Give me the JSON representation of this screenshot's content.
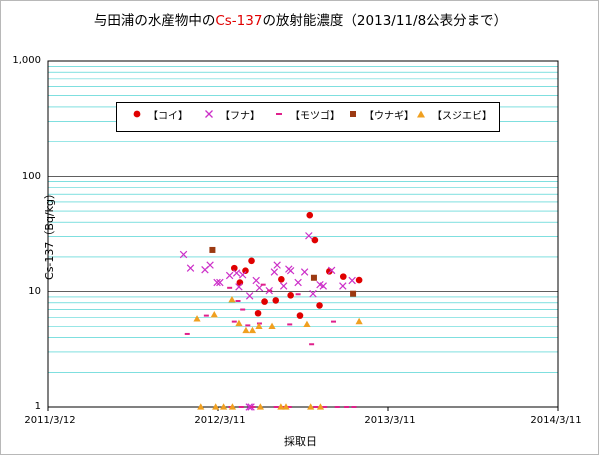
{
  "chart_data": {
    "type": "scatter",
    "title_prefix": "与田浦の水産物中の",
    "title_highlight": "Cs-137",
    "title_suffix": "の放射能濃度（2013/11/8公表分まで）",
    "xlabel": "採取日",
    "ylabel": "Cs-137（Bq/kg）",
    "y_scale": "log",
    "ylim": [
      1,
      1000
    ],
    "xlim": [
      "2011-03-12",
      "2014-03-11"
    ],
    "y_ticks": [
      "1",
      "10",
      "100",
      "1,000"
    ],
    "x_ticks": [
      "2011/3/12",
      "2012/3/11",
      "2013/3/11",
      "2014/3/11"
    ],
    "grid": true,
    "legend_position": "upper-center",
    "colors": {
      "koi": "#e00000",
      "funa": "#cc2fc8",
      "motsugo": "#e0208c",
      "unagi": "#9c3a12",
      "sujiebi": "#f0a020",
      "grid": "#33cccc",
      "axis": "#000000"
    },
    "series": [
      {
        "key": "koi",
        "name": "【コイ】",
        "marker": "circle",
        "points": [
          [
            "2012-04-15",
            16
          ],
          [
            "2012-04-27",
            12
          ],
          [
            "2012-05-09",
            15.2
          ],
          [
            "2012-05-22",
            18.5
          ],
          [
            "2012-06-05",
            6.5
          ],
          [
            "2012-06-19",
            8.2
          ],
          [
            "2012-07-13",
            8.4
          ],
          [
            "2012-07-25",
            12.8
          ],
          [
            "2012-08-14",
            9.3
          ],
          [
            "2012-09-03",
            6.2
          ],
          [
            "2012-09-24",
            46
          ],
          [
            "2012-10-05",
            28
          ],
          [
            "2012-10-15",
            7.6
          ],
          [
            "2012-11-05",
            15
          ],
          [
            "2012-12-05",
            13.5
          ],
          [
            "2013-01-08",
            12.6
          ]
        ]
      },
      {
        "key": "funa",
        "name": "【フナ】",
        "marker": "x",
        "points": [
          [
            "2011-12-28",
            21
          ],
          [
            "2012-01-12",
            16
          ],
          [
            "2012-02-12",
            15.5
          ],
          [
            "2012-02-23",
            17
          ],
          [
            "2012-03-09",
            12
          ],
          [
            "2012-03-15",
            12
          ],
          [
            "2012-04-05",
            13.8
          ],
          [
            "2012-04-20",
            14.5
          ],
          [
            "2012-04-25",
            11
          ],
          [
            "2012-05-03",
            14
          ],
          [
            "2012-05-18",
            9.2
          ],
          [
            "2012-06-01",
            12.5
          ],
          [
            "2012-06-08",
            10.8
          ],
          [
            "2012-06-29",
            10.2
          ],
          [
            "2012-07-10",
            14.8
          ],
          [
            "2012-07-16",
            17
          ],
          [
            "2012-07-30",
            11.2
          ],
          [
            "2012-08-10",
            15.7
          ],
          [
            "2012-08-14",
            15.2
          ],
          [
            "2012-08-30",
            12
          ],
          [
            "2012-09-13",
            14.8
          ],
          [
            "2012-09-22",
            30.5
          ],
          [
            "2012-10-01",
            9.6
          ],
          [
            "2012-10-16",
            11.5
          ],
          [
            "2012-10-23",
            11.2
          ],
          [
            "2012-11-10",
            15.3
          ],
          [
            "2012-12-04",
            11.2
          ],
          [
            "2012-12-24",
            12.5
          ],
          [
            "2012-05-17",
            1
          ],
          [
            "2012-05-21",
            1
          ]
        ]
      },
      {
        "key": "motsugo",
        "name": "【モツゴ】",
        "marker": "dash",
        "points": [
          [
            "2012-01-05",
            4.3
          ],
          [
            "2012-02-15",
            6.2
          ],
          [
            "2012-04-05",
            10.8
          ],
          [
            "2012-04-15",
            5.5
          ],
          [
            "2012-04-23",
            8.3
          ],
          [
            "2012-05-03",
            7
          ],
          [
            "2012-05-14",
            5.1
          ],
          [
            "2012-06-08",
            5.3
          ],
          [
            "2012-06-16",
            11.5
          ],
          [
            "2012-06-30",
            10.2
          ],
          [
            "2012-08-12",
            5.2
          ],
          [
            "2012-08-30",
            9.5
          ],
          [
            "2012-09-28",
            3.5
          ],
          [
            "2012-11-14",
            5.5
          ],
          [
            "2012-04-08",
            1
          ],
          [
            "2012-04-30",
            1
          ],
          [
            "2012-05-25",
            1
          ],
          [
            "2012-07-14",
            1
          ],
          [
            "2012-08-02",
            1
          ],
          [
            "2012-08-11",
            1
          ],
          [
            "2012-10-07",
            1
          ],
          [
            "2012-10-26",
            1
          ],
          [
            "2012-11-22",
            1
          ],
          [
            "2012-12-12",
            1
          ],
          [
            "2012-12-28",
            1
          ]
        ]
      },
      {
        "key": "unagi",
        "name": "【ウナギ】",
        "marker": "square",
        "points": [
          [
            "2012-02-28",
            23
          ],
          [
            "2012-10-03",
            13.2
          ],
          [
            "2012-12-26",
            9.6
          ]
        ]
      },
      {
        "key": "sujiebi",
        "name": "【スジエビ】",
        "marker": "triangle",
        "points": [
          [
            "2012-01-26",
            5.8
          ],
          [
            "2012-03-03",
            6.3
          ],
          [
            "2012-04-10",
            8.5
          ],
          [
            "2012-04-25",
            5.3
          ],
          [
            "2012-05-10",
            4.6
          ],
          [
            "2012-05-24",
            4.6
          ],
          [
            "2012-06-07",
            5
          ],
          [
            "2012-07-05",
            5
          ],
          [
            "2012-09-18",
            5.2
          ],
          [
            "2013-01-08",
            5.5
          ],
          [
            "2012-02-03",
            1
          ],
          [
            "2012-03-06",
            1
          ],
          [
            "2012-03-23",
            1
          ],
          [
            "2012-04-11",
            1
          ],
          [
            "2012-06-10",
            1
          ],
          [
            "2012-07-24",
            1
          ],
          [
            "2012-08-04",
            1
          ],
          [
            "2012-09-26",
            1
          ],
          [
            "2012-10-17",
            1
          ]
        ]
      }
    ]
  }
}
